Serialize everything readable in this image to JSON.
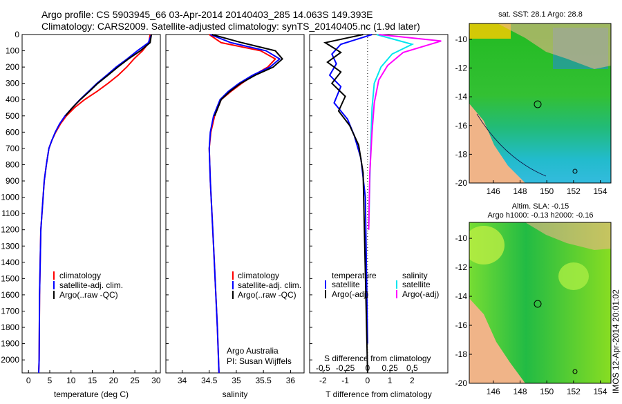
{
  "header": {
    "line1": "Argo profile: CS 5903945_66 03-Apr-2014 20140403_285 14.063S 149.393E",
    "line2": "Climatology: CARS2009. Satellite-adjusted climatology: synTS_20140405.nc (1.9d later)"
  },
  "colors": {
    "clim": "#ff0000",
    "sat": "#0000ff",
    "argo": "#000000",
    "sat_s": "#00e5ee",
    "argo_s": "#ff00ff"
  },
  "chart_data": [
    {
      "id": "temperature",
      "type": "line",
      "xlabel": "temperature (deg C)",
      "ylabel": "",
      "xlim": [
        -1.5,
        31
      ],
      "ylim": [
        2080,
        0
      ],
      "xticks": [
        0,
        5,
        10,
        15,
        20,
        25,
        30
      ],
      "yticks": [
        0,
        100,
        200,
        300,
        400,
        500,
        600,
        700,
        800,
        900,
        1000,
        1100,
        1200,
        1300,
        1400,
        1500,
        1600,
        1700,
        1800,
        1900,
        2000
      ],
      "legend": [
        "climatology",
        "satellite-adj. clim.",
        "Argo(..raw -QC)"
      ],
      "series": [
        {
          "name": "climatology",
          "color": "#ff0000",
          "x": [
            28.6,
            28.3,
            26.8,
            24.8,
            23.1,
            21.1,
            18.7,
            16.1,
            13.2,
            10.8,
            8.9,
            7.5,
            6.4,
            5.5,
            4.8,
            4.2,
            3.7,
            2.9,
            2.6,
            2.5,
            2.4
          ],
          "y": [
            0,
            50,
            100,
            150,
            200,
            250,
            300,
            350,
            400,
            450,
            500,
            550,
            600,
            650,
            700,
            800,
            900,
            1200,
            1600,
            2000,
            2080
          ]
        },
        {
          "name": "satellite-adj. clim.",
          "color": "#0000ff",
          "x": [
            28.9,
            28.2,
            25.6,
            23.2,
            20.6,
            18.4,
            16.1,
            14.1,
            12.1,
            10.3,
            8.6,
            7.3,
            6.3,
            5.5,
            4.8,
            4.2,
            3.7,
            2.9,
            2.6,
            2.5,
            2.4
          ],
          "y": [
            0,
            50,
            100,
            150,
            200,
            250,
            300,
            350,
            400,
            450,
            500,
            550,
            600,
            650,
            700,
            800,
            900,
            1200,
            1600,
            2000,
            2080
          ]
        },
        {
          "name": "Argo(..raw -QC)",
          "color": "#000000",
          "x": [
            28.9,
            28.6,
            26.3,
            23.5,
            21.0,
            18.7,
            16.3,
            14.3,
            12.2,
            10.3,
            8.7
          ],
          "y": [
            0,
            50,
            100,
            150,
            200,
            250,
            300,
            350,
            400,
            450,
            500
          ]
        }
      ]
    },
    {
      "id": "salinity",
      "type": "line",
      "xlabel": "salinity",
      "xlim": [
        33.7,
        36.25
      ],
      "ylim": [
        2080,
        0
      ],
      "xticks": [
        34,
        34.5,
        35,
        35.5,
        36
      ],
      "legend": [
        "climatology",
        "satellite-adj. clim.",
        "Argo(..raw -QC)"
      ],
      "annotation": [
        "Argo Australia",
        "PI: Susan Wijffels"
      ],
      "series": [
        {
          "name": "climatology",
          "color": "#ff0000",
          "x": [
            34.5,
            34.72,
            35.45,
            35.72,
            35.58,
            35.32,
            35.1,
            34.9,
            34.72,
            34.6,
            34.53,
            34.5,
            34.52,
            34.58,
            34.65,
            34.68
          ],
          "y": [
            0,
            50,
            100,
            150,
            200,
            250,
            300,
            350,
            400,
            500,
            600,
            700,
            900,
            1300,
            1800,
            2080
          ]
        },
        {
          "name": "satellite-adj. clim.",
          "color": "#0000ff",
          "x": [
            34.52,
            34.9,
            35.55,
            35.8,
            35.62,
            35.3,
            35.05,
            34.85,
            34.7,
            34.58,
            34.52,
            34.5,
            34.52,
            34.58,
            34.65,
            34.68
          ],
          "y": [
            0,
            50,
            100,
            150,
            200,
            250,
            300,
            350,
            400,
            500,
            600,
            700,
            900,
            1300,
            1800,
            2080
          ]
        },
        {
          "name": "Argo(..raw -QC)",
          "color": "#000000",
          "x": [
            34.55,
            35.1,
            35.72,
            35.85,
            35.68,
            35.35,
            35.08,
            34.88,
            34.72,
            34.6
          ],
          "y": [
            0,
            50,
            100,
            150,
            200,
            250,
            300,
            350,
            400,
            500
          ]
        }
      ]
    },
    {
      "id": "differences",
      "type": "line",
      "xlabel": "T difference from climatology",
      "xlabel_top": "S difference from climatology",
      "xlim": [
        -2.6,
        3.6
      ],
      "ylim": [
        2080,
        0
      ],
      "xticks": [
        -2,
        -1,
        0,
        1,
        2
      ],
      "sticks": [
        "-0.5",
        "-0.25",
        "0",
        "0.25",
        "0.5"
      ],
      "legend_t": [
        "temperature",
        "satellite",
        "Argo(-adj)"
      ],
      "legend_s": [
        "salinity",
        "satellite",
        "Argo(-adj)"
      ],
      "series": [
        {
          "name": "temperature satellite",
          "color": "#0000ff",
          "x": [
            0.2,
            -1.2,
            -1.6,
            -1.4,
            -1.7,
            -1.2,
            -1.5,
            -0.9,
            -0.6,
            -0.3,
            -0.1,
            0
          ],
          "y": [
            0,
            60,
            120,
            180,
            250,
            320,
            420,
            520,
            620,
            760,
            1000,
            1900
          ]
        },
        {
          "name": "temperature Argo(-adj)",
          "color": "#000000",
          "x": [
            -0.2,
            -1.9,
            -1.2,
            -1.8,
            -1.2,
            -1.6,
            -1.0,
            -1.3,
            -0.8,
            -0.4,
            -0.2,
            0
          ],
          "y": [
            0,
            50,
            110,
            170,
            230,
            300,
            380,
            470,
            560,
            680,
            850,
            2080
          ]
        },
        {
          "name": "salinity satellite",
          "color": "#00e5ee",
          "x": [
            0.4,
            2.0,
            1.1,
            0.6,
            0.3,
            0.2,
            0.15,
            0.1,
            0.05
          ],
          "y": [
            0,
            60,
            120,
            200,
            300,
            450,
            650,
            900,
            1200
          ]
        },
        {
          "name": "salinity Argo(-adj)",
          "color": "#ff00ff",
          "x": [
            0.5,
            3.3,
            1.6,
            0.9,
            0.5,
            0.3,
            0.2,
            0.1,
            0.05
          ],
          "y": [
            0,
            40,
            110,
            190,
            280,
            420,
            600,
            850,
            1200
          ]
        }
      ]
    },
    {
      "id": "sst_map",
      "type": "heatmap",
      "title": "sat. SST: 28.1  Argo: 28.8",
      "xticks": [
        146,
        148,
        150,
        152,
        154
      ],
      "yticks": [
        -10,
        -12,
        -14,
        -16,
        -18,
        -20
      ]
    },
    {
      "id": "sla_map",
      "type": "heatmap",
      "title1": "Altim. SLA: -0.15",
      "title2": "Argo h1000: -0.13 h2000: -0.16",
      "xticks": [
        146,
        148,
        150,
        152,
        154
      ],
      "yticks": [
        -10,
        -12,
        -14,
        -16,
        -18,
        -20
      ]
    }
  ],
  "side_label": "IMOS 12-Apr-2014 20:01:02"
}
